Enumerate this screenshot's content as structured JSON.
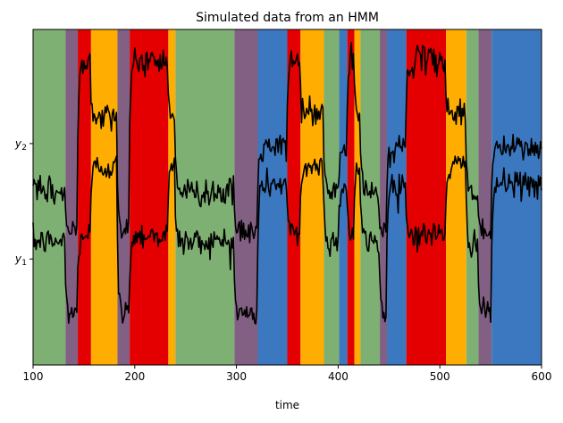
{
  "chart_data": {
    "type": "line",
    "title": "Simulated data from an HMM",
    "xlabel": "time",
    "ylabel": "",
    "xlim": [
      100,
      600
    ],
    "xticks": [
      100,
      200,
      300,
      400,
      500,
      600
    ],
    "yticks": [
      {
        "label": "y",
        "sub": "1",
        "value": 1
      },
      {
        "label": "y",
        "sub": "2",
        "value": 2
      }
    ],
    "state_colors": [
      "#7fb073",
      "#826084",
      "#e40000",
      "#ffad00",
      "#3b78c0"
    ],
    "state_segments": [
      {
        "start": 100,
        "end": 132,
        "state": 0
      },
      {
        "start": 132,
        "end": 144,
        "state": 1
      },
      {
        "start": 144,
        "end": 157,
        "state": 2
      },
      {
        "start": 157,
        "end": 183,
        "state": 3
      },
      {
        "start": 183,
        "end": 195,
        "state": 1
      },
      {
        "start": 195,
        "end": 233,
        "state": 2
      },
      {
        "start": 233,
        "end": 240,
        "state": 3
      },
      {
        "start": 240,
        "end": 298,
        "state": 0
      },
      {
        "start": 298,
        "end": 321,
        "state": 1
      },
      {
        "start": 321,
        "end": 350,
        "state": 4
      },
      {
        "start": 350,
        "end": 363,
        "state": 2
      },
      {
        "start": 363,
        "end": 386,
        "state": 3
      },
      {
        "start": 386,
        "end": 401,
        "state": 0
      },
      {
        "start": 401,
        "end": 409,
        "state": 4
      },
      {
        "start": 409,
        "end": 416,
        "state": 2
      },
      {
        "start": 416,
        "end": 422,
        "state": 3
      },
      {
        "start": 422,
        "end": 441,
        "state": 0
      },
      {
        "start": 441,
        "end": 448,
        "state": 1
      },
      {
        "start": 448,
        "end": 467,
        "state": 4
      },
      {
        "start": 467,
        "end": 506,
        "state": 2
      },
      {
        "start": 506,
        "end": 526,
        "state": 3
      },
      {
        "start": 526,
        "end": 538,
        "state": 0
      },
      {
        "start": 538,
        "end": 551,
        "state": 1
      },
      {
        "start": 551,
        "end": 600,
        "state": 4
      }
    ],
    "state_means": {
      "y1": [
        1.15,
        0.52,
        1.21,
        1.8,
        1.65
      ],
      "y2": [
        1.58,
        1.23,
        2.72,
        2.26,
        1.96
      ]
    },
    "noise_std": 0.06,
    "series": [
      {
        "name": "",
        "signal": "y1",
        "color": "#000000"
      },
      {
        "name": "",
        "signal": "y2",
        "color": "#000000"
      }
    ]
  }
}
